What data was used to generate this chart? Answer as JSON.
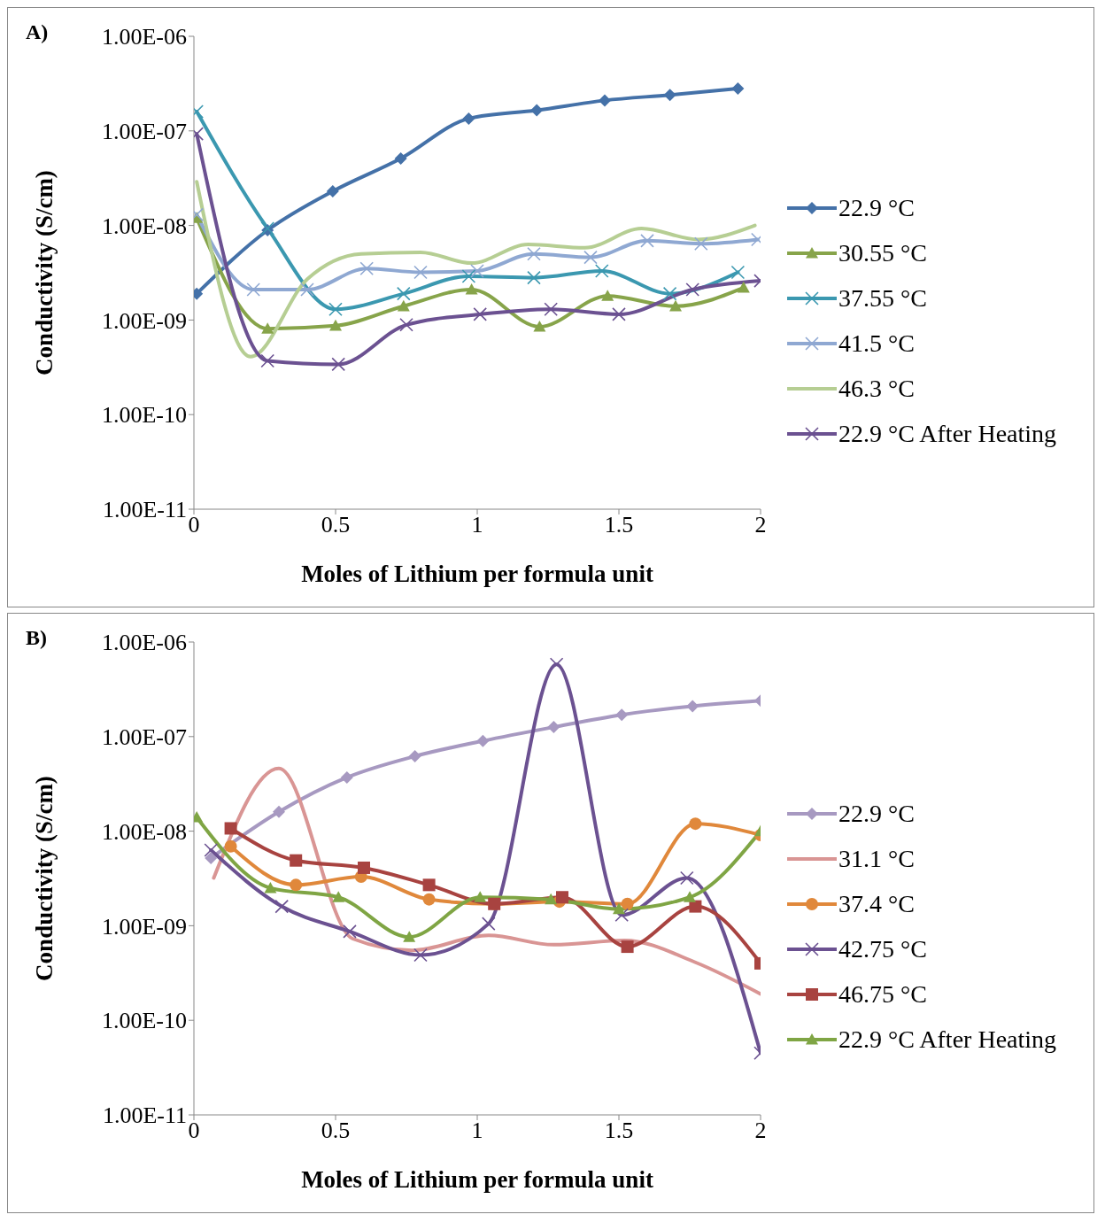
{
  "chart_data": [
    {
      "type": "line",
      "title": "A)",
      "xlabel": "Moles of Lithium per formula unit",
      "ylabel": "Conductivity (S/cm)",
      "log": "y",
      "legend": "right",
      "xlim": [
        0,
        2
      ],
      "xticks": [
        0,
        0.5,
        1,
        1.5,
        2
      ],
      "ylim": [
        1e-11,
        1e-06
      ],
      "yticks": [
        {
          "value": 1e-11,
          "label": "1.00E-11"
        },
        {
          "value": 1e-10,
          "label": "1.00E-10"
        },
        {
          "value": 1e-09,
          "label": "1.00E-09"
        },
        {
          "value": 1e-08,
          "label": "1.00E-08"
        },
        {
          "value": 1e-07,
          "label": "1.00E-07"
        },
        {
          "value": 1e-06,
          "label": "1.00E-06"
        }
      ],
      "series": [
        {
          "name": "22.9 °C",
          "color": "#4471a8",
          "marker": "diamond",
          "x": [
            0.01,
            0.26,
            0.49,
            0.73,
            0.97,
            1.21,
            1.45,
            1.68,
            1.92
          ],
          "values": [
            1.9e-09,
            8.9e-09,
            2.3e-08,
            5.1e-08,
            1.35e-07,
            1.65e-07,
            2.1e-07,
            2.4e-07,
            2.8e-07
          ]
        },
        {
          "name": "30.55 °C",
          "color": "#87a44a",
          "marker": "triangle",
          "x": [
            0.01,
            0.26,
            0.5,
            0.74,
            0.98,
            1.22,
            1.46,
            1.7,
            1.94
          ],
          "values": [
            1.2e-08,
            8.1e-10,
            8.7e-10,
            1.4e-09,
            2.1e-09,
            8.5e-10,
            1.8e-09,
            1.4e-09,
            2.2e-09
          ]
        },
        {
          "name": "37.55 °C",
          "color": "#3b98b0",
          "marker": "cross",
          "x": [
            0.01,
            0.26,
            0.5,
            0.74,
            0.97,
            1.2,
            1.44,
            1.68,
            1.92
          ],
          "values": [
            1.6e-07,
            9.3e-09,
            1.3e-09,
            1.9e-09,
            2.9e-09,
            2.8e-09,
            3.3e-09,
            1.9e-09,
            3.2e-09
          ]
        },
        {
          "name": "41.5 °C",
          "color": "#8fa8d2",
          "marker": "cross",
          "x": [
            0.01,
            0.21,
            0.4,
            0.61,
            0.8,
            1.0,
            1.2,
            1.4,
            1.6,
            1.79,
            1.99
          ],
          "values": [
            1.3e-08,
            2.1e-09,
            2.1e-09,
            3.5e-09,
            3.2e-09,
            3.3e-09,
            5e-09,
            4.6e-09,
            6.9e-09,
            6.4e-09,
            7.1e-09
          ]
        },
        {
          "name": "46.3 °C",
          "color": "#b6ce93",
          "marker": "none",
          "x": [
            0.01,
            0.2,
            0.4,
            0.59,
            0.8,
            0.98,
            1.18,
            1.38,
            1.58,
            1.78,
            1.98
          ],
          "values": [
            2.9e-08,
            4.1e-10,
            2.7e-09,
            5e-09,
            5.2e-09,
            4e-09,
            6.3e-09,
            5.8e-09,
            9.3e-09,
            7.1e-09,
            1e-08
          ]
        },
        {
          "name": "22.9 °C After Heating",
          "color": "#6b5191",
          "marker": "cross",
          "x": [
            0.01,
            0.26,
            0.51,
            0.75,
            1.01,
            1.26,
            1.5,
            1.76,
            2.0
          ],
          "values": [
            9.3e-08,
            3.7e-10,
            3.4e-10,
            8.9e-10,
            1.15e-09,
            1.3e-09,
            1.15e-09,
            2.1e-09,
            2.6e-09
          ]
        }
      ]
    },
    {
      "type": "line",
      "title": "B)",
      "xlabel": "Moles of Lithium per formula unit",
      "ylabel": "Conductivity (S/cm)",
      "log": "y",
      "legend": "right",
      "xlim": [
        0,
        2
      ],
      "xticks": [
        0,
        0.5,
        1,
        1.5,
        2
      ],
      "ylim": [
        1e-11,
        1e-06
      ],
      "yticks": [
        {
          "value": 1e-11,
          "label": "1.00E-11"
        },
        {
          "value": 1e-10,
          "label": "1.00E-10"
        },
        {
          "value": 1e-09,
          "label": "1.00E-09"
        },
        {
          "value": 1e-08,
          "label": "1.00E-08"
        },
        {
          "value": 1e-07,
          "label": "1.00E-07"
        },
        {
          "value": 1e-06,
          "label": "1.00E-06"
        }
      ],
      "series": [
        {
          "name": "22.9 °C",
          "color": "#a799c1",
          "marker": "diamond",
          "x": [
            0.06,
            0.3,
            0.54,
            0.78,
            1.02,
            1.27,
            1.51,
            1.76,
            2.0
          ],
          "values": [
            5.2e-09,
            1.6e-08,
            3.7e-08,
            6.2e-08,
            9e-08,
            1.26e-07,
            1.7e-07,
            2.1e-07,
            2.4e-07
          ]
        },
        {
          "name": "31.1 °C",
          "color": "#d99594",
          "marker": "none",
          "x": [
            0.07,
            0.3,
            0.56,
            0.77,
            1.04,
            1.27,
            1.52,
            1.77,
            2.0
          ],
          "values": [
            3.2e-09,
            4.6e-08,
            7.3e-10,
            5.5e-10,
            7.9e-10,
            6.3e-10,
            7e-10,
            4.1e-10,
            1.9e-10
          ]
        },
        {
          "name": "37.4 °C",
          "color": "#e0883b",
          "marker": "circle",
          "x": [
            0.13,
            0.36,
            0.59,
            0.83,
            1.06,
            1.29,
            1.53,
            1.77,
            2.0
          ],
          "values": [
            6.9e-09,
            2.7e-09,
            3.3e-09,
            1.9e-09,
            1.7e-09,
            1.8e-09,
            1.7e-09,
            1.2e-08,
            9.1e-09
          ]
        },
        {
          "name": "42.75 °C",
          "color": "#6b5191",
          "marker": "cross",
          "x": [
            0.06,
            0.31,
            0.55,
            0.8,
            1.04,
            1.28,
            1.51,
            1.74,
            2.0
          ],
          "values": [
            6.3e-09,
            1.6e-09,
            8.7e-10,
            4.9e-10,
            1.05e-09,
            5.8e-07,
            1.3e-09,
            3.2e-09,
            4.5e-11
          ]
        },
        {
          "name": "46.75 °C",
          "color": "#a84340",
          "marker": "square",
          "x": [
            0.13,
            0.36,
            0.6,
            0.83,
            1.06,
            1.3,
            1.53,
            1.77,
            2.0
          ],
          "values": [
            1.07e-08,
            4.9e-09,
            4.1e-09,
            2.7e-09,
            1.7e-09,
            2e-09,
            6e-10,
            1.6e-09,
            4e-10
          ]
        },
        {
          "name": "22.9 °C After Heating",
          "color": "#7fa544",
          "marker": "triangle",
          "x": [
            0.01,
            0.27,
            0.51,
            0.76,
            1.01,
            1.26,
            1.5,
            1.75,
            2.0
          ],
          "values": [
            1.4e-08,
            2.5e-09,
            2e-09,
            7.6e-10,
            2e-09,
            1.9e-09,
            1.5e-09,
            2e-09,
            1e-08
          ]
        }
      ]
    }
  ]
}
